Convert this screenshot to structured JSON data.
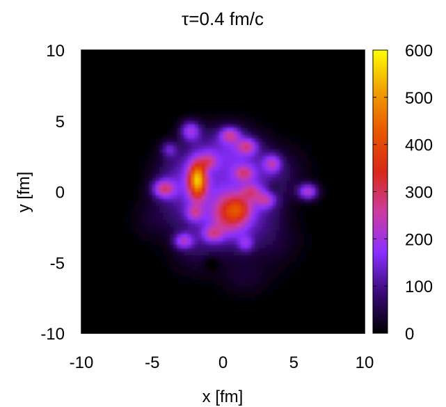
{
  "chart_data": {
    "type": "heatmap",
    "title": "τ=0.4 fm/c",
    "xlabel": "x [fm]",
    "ylabel": "y [fm]",
    "xlim": [
      -10,
      10
    ],
    "ylim": [
      -10,
      10
    ],
    "xticks": [
      "-10",
      "-5",
      "0",
      "5",
      "10"
    ],
    "yticks": [
      "-10",
      "-5",
      "0",
      "5",
      "10"
    ],
    "colorbar": {
      "range": [
        0,
        600
      ],
      "ticks": [
        "0",
        "100",
        "200",
        "300",
        "400",
        "500",
        "600"
      ],
      "colormap": [
        "#000000",
        "#3a0a78",
        "#8a30ff",
        "#cc3ca0",
        "#d82818",
        "#e85800",
        "#f0a000",
        "#ffff00"
      ]
    },
    "background_value": 0,
    "blobs": [
      {
        "x": 0.0,
        "y": 0.0,
        "sx": 3.6,
        "sy": 3.6,
        "v": 130
      },
      {
        "x": 0.5,
        "y": 3.0,
        "sx": 1.5,
        "sy": 1.2,
        "v": 45
      },
      {
        "x": -3.5,
        "y": 1.0,
        "sx": 1.2,
        "sy": 1.4,
        "v": 40
      },
      {
        "x": 3.5,
        "y": -3.5,
        "sx": 1.3,
        "sy": 1.2,
        "v": 40
      },
      {
        "x": -2.0,
        "y": -4.5,
        "sx": 1.2,
        "sy": 1.0,
        "v": 35
      },
      {
        "x": 4.5,
        "y": 1.5,
        "sx": 1.1,
        "sy": 1.2,
        "v": 35
      },
      {
        "x": 1.5,
        "y": -6.0,
        "sx": 1.2,
        "sy": 0.9,
        "v": 35
      },
      {
        "x": -5.0,
        "y": -2.0,
        "sx": 1.0,
        "sy": 1.0,
        "v": 30
      },
      {
        "x": -1.8,
        "y": 0.8,
        "sx": 0.45,
        "sy": 0.9,
        "v": 420
      },
      {
        "x": 0.5,
        "y": -1.5,
        "sx": 0.9,
        "sy": 1.0,
        "v": 220
      },
      {
        "x": 1.2,
        "y": -1.2,
        "sx": 0.6,
        "sy": 0.6,
        "v": 120
      },
      {
        "x": -4.2,
        "y": 0.2,
        "sx": 0.55,
        "sy": 0.45,
        "v": 210
      },
      {
        "x": -2.3,
        "y": 4.3,
        "sx": 0.5,
        "sy": 0.5,
        "v": 180
      },
      {
        "x": 0.5,
        "y": 4.0,
        "sx": 0.5,
        "sy": 0.4,
        "v": 180
      },
      {
        "x": 1.7,
        "y": 3.2,
        "sx": 0.5,
        "sy": 0.4,
        "v": 170
      },
      {
        "x": 3.5,
        "y": 2.0,
        "sx": 0.45,
        "sy": 0.45,
        "v": 160
      },
      {
        "x": 6.0,
        "y": 0.0,
        "sx": 0.5,
        "sy": 0.4,
        "v": 210
      },
      {
        "x": 1.5,
        "y": 1.3,
        "sx": 0.5,
        "sy": 0.4,
        "v": 150
      },
      {
        "x": -1.0,
        "y": 2.0,
        "sx": 0.4,
        "sy": 0.5,
        "v": 140
      },
      {
        "x": 3.0,
        "y": -0.6,
        "sx": 0.5,
        "sy": 0.4,
        "v": 140
      },
      {
        "x": 2.0,
        "y": 0.0,
        "sx": 0.5,
        "sy": 0.4,
        "v": 130
      },
      {
        "x": -2.8,
        "y": -3.5,
        "sx": 0.5,
        "sy": 0.4,
        "v": 170
      },
      {
        "x": -2.0,
        "y": -1.5,
        "sx": 0.4,
        "sy": 0.4,
        "v": 130
      },
      {
        "x": -3.8,
        "y": 3.0,
        "sx": 0.4,
        "sy": 0.4,
        "v": 110
      },
      {
        "x": -0.7,
        "y": -3.0,
        "sx": 0.5,
        "sy": 0.4,
        "v": 140
      },
      {
        "x": 1.6,
        "y": -3.7,
        "sx": 0.4,
        "sy": 0.4,
        "v": 110
      },
      {
        "x": -1.0,
        "y": 1.5,
        "sx": 0.35,
        "sy": 0.35,
        "v": -70
      },
      {
        "x": 3.6,
        "y": 0.3,
        "sx": 0.35,
        "sy": 0.35,
        "v": -40
      },
      {
        "x": -0.8,
        "y": -5.0,
        "sx": 0.4,
        "sy": 0.35,
        "v": -40
      }
    ]
  }
}
